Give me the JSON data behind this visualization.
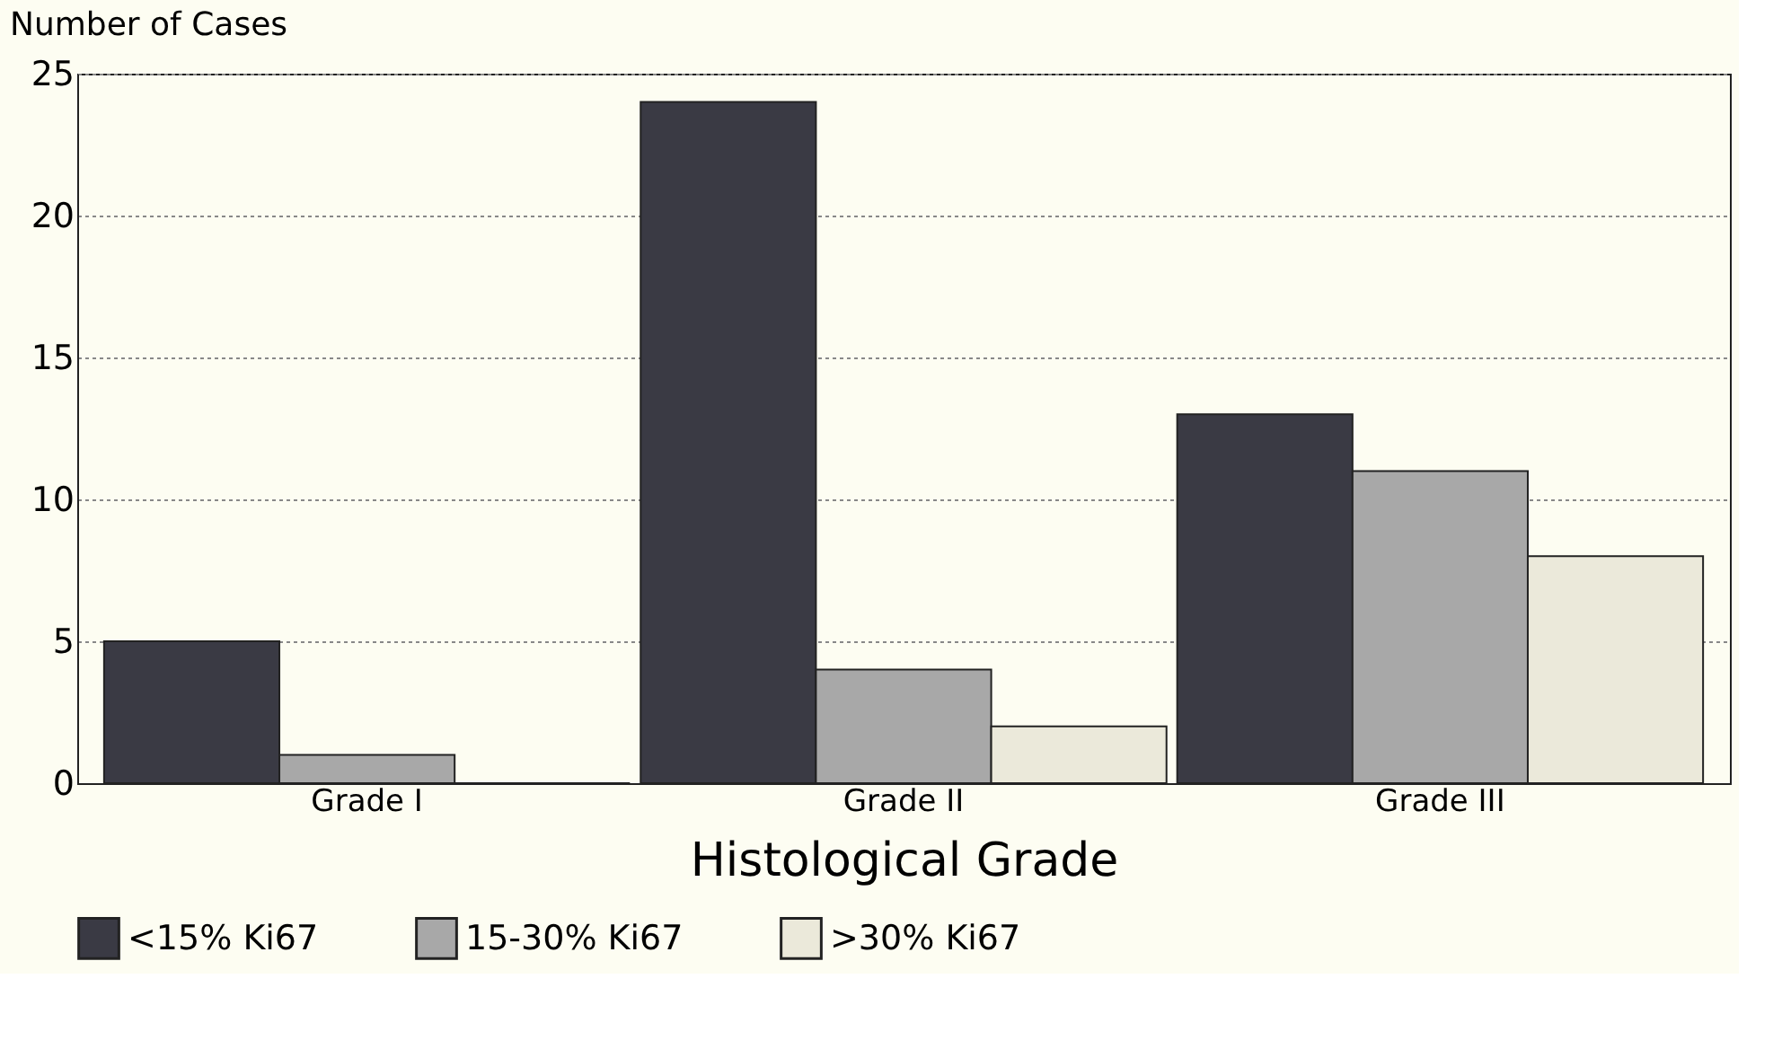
{
  "chart_data": {
    "type": "bar",
    "xlabel": "Histological Grade",
    "ylabel": "Number of Cases",
    "categories": [
      "Grade I",
      "Grade II",
      "Grade III"
    ],
    "series": [
      {
        "name": "<15% Ki67",
        "color": "#3a3a44",
        "values": [
          5,
          24,
          13
        ]
      },
      {
        "name": "15-30% Ki67",
        "color": "#a8a8a8",
        "values": [
          1,
          4,
          11
        ]
      },
      {
        "name": ">30% Ki67",
        "color": "#ebe9da",
        "values": [
          0,
          2,
          8
        ]
      }
    ],
    "ylim": [
      0,
      25
    ],
    "yticks": [
      0,
      5,
      10,
      15,
      20,
      25
    ],
    "grid": "y",
    "legend": "bottom"
  }
}
